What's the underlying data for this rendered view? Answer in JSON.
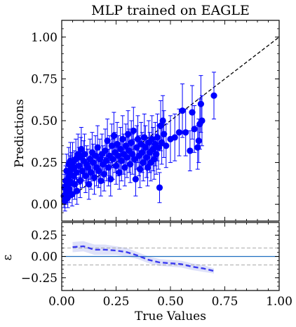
{
  "chart_data": [
    {
      "type": "scatter",
      "panel": "main",
      "title": "MLP trained on EAGLE",
      "xlabel": "",
      "ylabel": "Predictions",
      "xlim": [
        0.0,
        1.0
      ],
      "ylim": [
        -0.1,
        1.1
      ],
      "yticks": [
        "0.00",
        "0.25",
        "0.50",
        "0.75",
        "1.00"
      ],
      "grid": false,
      "marker_color": "#0000ff",
      "reference_line": {
        "style": "dashed",
        "color": "#000000",
        "from": [
          0,
          0
        ],
        "to": [
          1,
          1
        ]
      },
      "points": [
        {
          "x": 0.01,
          "y": 0.05,
          "err": 0.07
        },
        {
          "x": 0.012,
          "y": 0.1,
          "err": 0.08
        },
        {
          "x": 0.015,
          "y": 0.02,
          "err": 0.06
        },
        {
          "x": 0.018,
          "y": 0.14,
          "err": 0.09
        },
        {
          "x": 0.02,
          "y": 0.07,
          "err": 0.07
        },
        {
          "x": 0.022,
          "y": 0.2,
          "err": 0.1
        },
        {
          "x": 0.025,
          "y": 0.11,
          "err": 0.09
        },
        {
          "x": 0.028,
          "y": 0.04,
          "err": 0.06
        },
        {
          "x": 0.03,
          "y": 0.16,
          "err": 0.1
        },
        {
          "x": 0.032,
          "y": 0.24,
          "err": 0.1
        },
        {
          "x": 0.035,
          "y": 0.09,
          "err": 0.08
        },
        {
          "x": 0.038,
          "y": 0.18,
          "err": 0.11
        },
        {
          "x": 0.04,
          "y": 0.26,
          "err": 0.11
        },
        {
          "x": 0.042,
          "y": 0.13,
          "err": 0.09
        },
        {
          "x": 0.045,
          "y": 0.21,
          "err": 0.1
        },
        {
          "x": 0.048,
          "y": 0.06,
          "err": 0.07
        },
        {
          "x": 0.05,
          "y": 0.25,
          "err": 0.12
        },
        {
          "x": 0.055,
          "y": 0.17,
          "err": 0.11
        },
        {
          "x": 0.058,
          "y": 0.22,
          "err": 0.1
        },
        {
          "x": 0.06,
          "y": 0.12,
          "err": 0.09
        },
        {
          "x": 0.065,
          "y": 0.27,
          "err": 0.12
        },
        {
          "x": 0.068,
          "y": 0.19,
          "err": 0.1
        },
        {
          "x": 0.07,
          "y": 0.08,
          "err": 0.08
        },
        {
          "x": 0.075,
          "y": 0.3,
          "err": 0.12
        },
        {
          "x": 0.08,
          "y": 0.23,
          "err": 0.11
        },
        {
          "x": 0.085,
          "y": 0.14,
          "err": 0.1
        },
        {
          "x": 0.088,
          "y": 0.28,
          "err": 0.12
        },
        {
          "x": 0.09,
          "y": 0.33,
          "err": 0.13
        },
        {
          "x": 0.095,
          "y": 0.2,
          "err": 0.1
        },
        {
          "x": 0.1,
          "y": 0.26,
          "err": 0.12
        },
        {
          "x": 0.105,
          "y": 0.3,
          "err": 0.12
        },
        {
          "x": 0.11,
          "y": 0.17,
          "err": 0.1
        },
        {
          "x": 0.115,
          "y": 0.24,
          "err": 0.11
        },
        {
          "x": 0.12,
          "y": 0.22,
          "err": 0.11
        },
        {
          "x": 0.125,
          "y": 0.12,
          "err": 0.09
        },
        {
          "x": 0.13,
          "y": 0.27,
          "err": 0.12
        },
        {
          "x": 0.135,
          "y": 0.19,
          "err": 0.1
        },
        {
          "x": 0.14,
          "y": 0.31,
          "err": 0.12
        },
        {
          "x": 0.145,
          "y": 0.25,
          "err": 0.11
        },
        {
          "x": 0.15,
          "y": 0.16,
          "err": 0.1
        },
        {
          "x": 0.155,
          "y": 0.29,
          "err": 0.12
        },
        {
          "x": 0.16,
          "y": 0.22,
          "err": 0.11
        },
        {
          "x": 0.165,
          "y": 0.34,
          "err": 0.13
        },
        {
          "x": 0.17,
          "y": 0.2,
          "err": 0.1
        },
        {
          "x": 0.175,
          "y": 0.27,
          "err": 0.12
        },
        {
          "x": 0.18,
          "y": 0.14,
          "err": 0.09
        },
        {
          "x": 0.185,
          "y": 0.3,
          "err": 0.12
        },
        {
          "x": 0.19,
          "y": 0.24,
          "err": 0.11
        },
        {
          "x": 0.195,
          "y": 0.18,
          "err": 0.1
        },
        {
          "x": 0.2,
          "y": 0.32,
          "err": 0.13
        },
        {
          "x": 0.205,
          "y": 0.26,
          "err": 0.12
        },
        {
          "x": 0.21,
          "y": 0.38,
          "err": 0.13
        },
        {
          "x": 0.215,
          "y": 0.22,
          "err": 0.11
        },
        {
          "x": 0.22,
          "y": 0.29,
          "err": 0.12
        },
        {
          "x": 0.225,
          "y": 0.15,
          "err": 0.1
        },
        {
          "x": 0.23,
          "y": 0.35,
          "err": 0.13
        },
        {
          "x": 0.235,
          "y": 0.27,
          "err": 0.12
        },
        {
          "x": 0.24,
          "y": 0.41,
          "err": 0.14
        },
        {
          "x": 0.245,
          "y": 0.31,
          "err": 0.12
        },
        {
          "x": 0.25,
          "y": 0.23,
          "err": 0.11
        },
        {
          "x": 0.255,
          "y": 0.36,
          "err": 0.13
        },
        {
          "x": 0.26,
          "y": 0.29,
          "err": 0.12
        },
        {
          "x": 0.265,
          "y": 0.19,
          "err": 0.1
        },
        {
          "x": 0.27,
          "y": 0.33,
          "err": 0.13
        },
        {
          "x": 0.275,
          "y": 0.26,
          "err": 0.12
        },
        {
          "x": 0.28,
          "y": 0.39,
          "err": 0.14
        },
        {
          "x": 0.285,
          "y": 0.3,
          "err": 0.12
        },
        {
          "x": 0.29,
          "y": 0.22,
          "err": 0.11
        },
        {
          "x": 0.295,
          "y": 0.35,
          "err": 0.13
        },
        {
          "x": 0.3,
          "y": 0.28,
          "err": 0.12
        },
        {
          "x": 0.305,
          "y": 0.42,
          "err": 0.14
        },
        {
          "x": 0.31,
          "y": 0.32,
          "err": 0.13
        },
        {
          "x": 0.315,
          "y": 0.24,
          "err": 0.11
        },
        {
          "x": 0.32,
          "y": 0.37,
          "err": 0.13
        },
        {
          "x": 0.325,
          "y": 0.3,
          "err": 0.12
        },
        {
          "x": 0.33,
          "y": 0.44,
          "err": 0.14
        },
        {
          "x": 0.335,
          "y": 0.27,
          "err": 0.12
        },
        {
          "x": 0.34,
          "y": 0.15,
          "err": 0.1
        },
        {
          "x": 0.345,
          "y": 0.34,
          "err": 0.13
        },
        {
          "x": 0.35,
          "y": 0.39,
          "err": 0.14
        },
        {
          "x": 0.355,
          "y": 0.29,
          "err": 0.12
        },
        {
          "x": 0.36,
          "y": 0.21,
          "err": 0.11
        },
        {
          "x": 0.365,
          "y": 0.36,
          "err": 0.13
        },
        {
          "x": 0.37,
          "y": 0.31,
          "err": 0.12
        },
        {
          "x": 0.375,
          "y": 0.25,
          "err": 0.11
        },
        {
          "x": 0.38,
          "y": 0.4,
          "err": 0.14
        },
        {
          "x": 0.385,
          "y": 0.34,
          "err": 0.13
        },
        {
          "x": 0.39,
          "y": 0.28,
          "err": 0.12
        },
        {
          "x": 0.395,
          "y": 0.22,
          "err": 0.11
        },
        {
          "x": 0.4,
          "y": 0.37,
          "err": 0.13
        },
        {
          "x": 0.405,
          "y": 0.31,
          "err": 0.12
        },
        {
          "x": 0.41,
          "y": 0.25,
          "err": 0.11
        },
        {
          "x": 0.415,
          "y": 0.39,
          "err": 0.14
        },
        {
          "x": 0.42,
          "y": 0.33,
          "err": 0.13
        },
        {
          "x": 0.425,
          "y": 0.27,
          "err": 0.12
        },
        {
          "x": 0.43,
          "y": 0.36,
          "err": 0.13
        },
        {
          "x": 0.435,
          "y": 0.3,
          "err": 0.12
        },
        {
          "x": 0.44,
          "y": 0.4,
          "err": 0.14
        },
        {
          "x": 0.445,
          "y": 0.34,
          "err": 0.13
        },
        {
          "x": 0.45,
          "y": 0.1,
          "err": 0.09
        },
        {
          "x": 0.455,
          "y": 0.47,
          "err": 0.15
        },
        {
          "x": 0.46,
          "y": 0.37,
          "err": 0.13
        },
        {
          "x": 0.465,
          "y": 0.5,
          "err": 0.15
        },
        {
          "x": 0.47,
          "y": 0.42,
          "err": 0.14
        },
        {
          "x": 0.48,
          "y": 0.35,
          "err": 0.13
        },
        {
          "x": 0.5,
          "y": 0.39,
          "err": 0.14
        },
        {
          "x": 0.52,
          "y": 0.4,
          "err": 0.14
        },
        {
          "x": 0.54,
          "y": 0.43,
          "err": 0.14
        },
        {
          "x": 0.555,
          "y": 0.56,
          "err": 0.16
        },
        {
          "x": 0.57,
          "y": 0.43,
          "err": 0.14
        },
        {
          "x": 0.59,
          "y": 0.32,
          "err": 0.12
        },
        {
          "x": 0.6,
          "y": 0.55,
          "err": 0.16
        },
        {
          "x": 0.61,
          "y": 0.45,
          "err": 0.14
        },
        {
          "x": 0.625,
          "y": 0.34,
          "err": 0.13
        },
        {
          "x": 0.63,
          "y": 0.38,
          "err": 0.13
        },
        {
          "x": 0.635,
          "y": 0.48,
          "err": 0.15
        },
        {
          "x": 0.64,
          "y": 0.6,
          "err": 0.17
        },
        {
          "x": 0.645,
          "y": 0.5,
          "err": 0.15
        },
        {
          "x": 0.7,
          "y": 0.65,
          "err": 0.14
        }
      ]
    },
    {
      "type": "line",
      "panel": "residual",
      "xlabel": "True Values",
      "ylabel": "ε",
      "xlim": [
        0.0,
        1.0
      ],
      "ylim": [
        -0.4,
        0.4
      ],
      "xticks": [
        "0.00",
        "0.25",
        "0.50",
        "0.75",
        "1.00"
      ],
      "yticks": [
        "−0.25",
        "0.00",
        "0.25"
      ],
      "grid": false,
      "colors": {
        "line": "#3a3af0",
        "band": "#d8dcf8",
        "zero_line": "#1f6fc0",
        "threshold": "#a8a8a8"
      },
      "thresholds": [
        0.1,
        -0.1
      ],
      "x": [
        0.05,
        0.1,
        0.15,
        0.2,
        0.25,
        0.3,
        0.35,
        0.4,
        0.45,
        0.5,
        0.55,
        0.6,
        0.65,
        0.7
      ],
      "y": [
        0.11,
        0.12,
        0.08,
        0.08,
        0.07,
        0.05,
        0.01,
        -0.04,
        -0.07,
        -0.08,
        -0.09,
        -0.12,
        -0.14,
        -0.17
      ],
      "band": [
        0.06,
        0.06,
        0.06,
        0.06,
        0.05,
        0.05,
        0.04,
        0.04,
        0.04,
        0.04,
        0.04,
        0.04,
        0.04,
        0.03
      ]
    }
  ]
}
